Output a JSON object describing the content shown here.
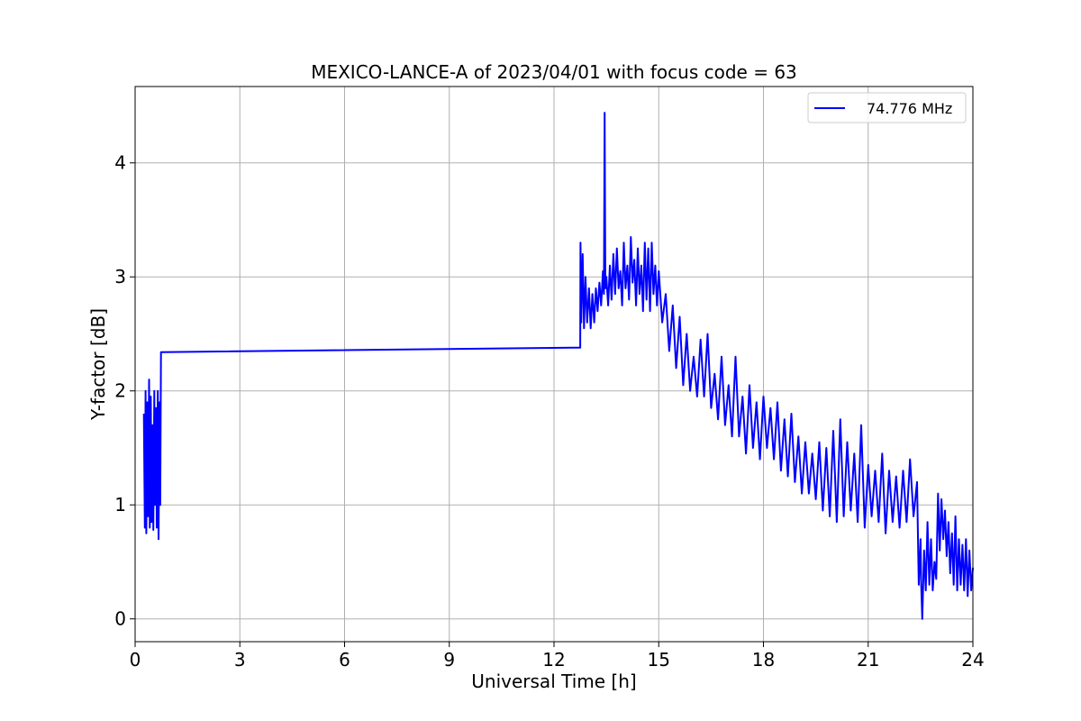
{
  "chart_data": {
    "type": "line",
    "title": "MEXICO-LANCE-A of 2023/04/01 with focus code = 63",
    "xlabel": "Universal Time [h]",
    "ylabel": "Y-factor [dB]",
    "xlim": [
      0,
      24
    ],
    "ylim": [
      -0.2,
      4.67
    ],
    "xticks": [
      0,
      3,
      6,
      9,
      12,
      15,
      18,
      21,
      24
    ],
    "yticks": [
      0,
      1,
      2,
      3,
      4
    ],
    "grid": true,
    "legend_position": "top-right",
    "series": [
      {
        "name": "74.776 MHz",
        "color": "#0000ff",
        "x": [
          0.25,
          0.28,
          0.3,
          0.32,
          0.35,
          0.37,
          0.4,
          0.42,
          0.45,
          0.47,
          0.5,
          0.52,
          0.55,
          0.57,
          0.6,
          0.62,
          0.65,
          0.67,
          0.7,
          0.72,
          0.74,
          0.75,
          12.75,
          12.76,
          12.78,
          12.82,
          12.86,
          12.9,
          12.95,
          13.0,
          13.05,
          13.1,
          13.15,
          13.2,
          13.25,
          13.3,
          13.35,
          13.4,
          13.43,
          13.45,
          13.47,
          13.5,
          13.55,
          13.6,
          13.65,
          13.7,
          13.75,
          13.8,
          13.85,
          13.9,
          13.95,
          14.0,
          14.05,
          14.1,
          14.15,
          14.2,
          14.25,
          14.3,
          14.35,
          14.4,
          14.45,
          14.5,
          14.55,
          14.6,
          14.65,
          14.7,
          14.75,
          14.8,
          14.85,
          14.9,
          14.95,
          15.0,
          15.1,
          15.2,
          15.3,
          15.4,
          15.5,
          15.6,
          15.7,
          15.8,
          15.9,
          16.0,
          16.1,
          16.2,
          16.3,
          16.4,
          16.5,
          16.6,
          16.7,
          16.8,
          16.9,
          17.0,
          17.1,
          17.2,
          17.3,
          17.4,
          17.5,
          17.6,
          17.7,
          17.8,
          17.9,
          18.0,
          18.1,
          18.2,
          18.3,
          18.4,
          18.5,
          18.6,
          18.7,
          18.8,
          18.9,
          19.0,
          19.1,
          19.2,
          19.3,
          19.4,
          19.5,
          19.6,
          19.7,
          19.8,
          19.9,
          20.0,
          20.1,
          20.2,
          20.3,
          20.4,
          20.5,
          20.6,
          20.7,
          20.8,
          20.9,
          21.0,
          21.1,
          21.2,
          21.3,
          21.4,
          21.5,
          21.6,
          21.7,
          21.8,
          21.9,
          22.0,
          22.1,
          22.2,
          22.3,
          22.4,
          22.45,
          22.5,
          22.52,
          22.55,
          22.6,
          22.65,
          22.7,
          22.75,
          22.8,
          22.85,
          22.9,
          22.95,
          23.0,
          23.05,
          23.1,
          23.15,
          23.2,
          23.25,
          23.3,
          23.35,
          23.4,
          23.45,
          23.5,
          23.55,
          23.6,
          23.65,
          23.7,
          23.75,
          23.8,
          23.85,
          23.9,
          23.95,
          24.0
        ],
        "y": [
          1.8,
          0.8,
          2.0,
          0.75,
          1.9,
          0.9,
          2.1,
          0.8,
          1.95,
          0.85,
          1.7,
          0.78,
          2.0,
          1.0,
          1.85,
          0.8,
          2.0,
          0.7,
          1.9,
          1.0,
          2.34,
          2.34,
          2.38,
          3.3,
          2.6,
          3.2,
          2.55,
          3.0,
          2.6,
          2.9,
          2.55,
          2.85,
          2.6,
          2.9,
          2.7,
          2.95,
          2.75,
          3.05,
          2.85,
          4.44,
          2.9,
          3.0,
          2.75,
          3.1,
          2.8,
          3.2,
          2.85,
          3.25,
          2.9,
          3.05,
          2.75,
          3.3,
          2.9,
          3.1,
          2.8,
          3.35,
          2.95,
          3.15,
          2.75,
          3.25,
          2.85,
          3.1,
          2.7,
          3.3,
          2.8,
          3.25,
          2.7,
          3.3,
          2.85,
          3.1,
          2.75,
          3.05,
          2.6,
          2.85,
          2.35,
          2.75,
          2.2,
          2.65,
          2.05,
          2.5,
          2.0,
          2.3,
          1.95,
          2.45,
          1.95,
          2.5,
          1.85,
          2.15,
          1.75,
          2.3,
          1.7,
          2.05,
          1.6,
          2.3,
          1.6,
          1.95,
          1.45,
          2.05,
          1.5,
          1.9,
          1.4,
          1.95,
          1.5,
          1.85,
          1.4,
          1.9,
          1.3,
          1.75,
          1.25,
          1.8,
          1.2,
          1.6,
          1.1,
          1.55,
          1.1,
          1.45,
          1.05,
          1.55,
          0.95,
          1.5,
          0.9,
          1.65,
          0.85,
          1.75,
          0.9,
          1.55,
          0.95,
          1.45,
          0.85,
          1.7,
          0.8,
          1.35,
          0.9,
          1.3,
          0.85,
          1.45,
          0.75,
          1.3,
          0.85,
          1.25,
          0.8,
          1.3,
          0.85,
          1.4,
          0.9,
          1.2,
          0.3,
          0.7,
          0.3,
          0.0,
          0.6,
          0.25,
          0.85,
          0.3,
          0.7,
          0.25,
          0.5,
          0.35,
          1.1,
          0.6,
          1.05,
          0.7,
          0.95,
          0.55,
          0.85,
          0.4,
          0.75,
          0.3,
          0.9,
          0.25,
          0.7,
          0.3,
          0.65,
          0.25,
          0.7,
          0.2,
          0.6,
          0.25,
          0.45
        ]
      }
    ]
  }
}
